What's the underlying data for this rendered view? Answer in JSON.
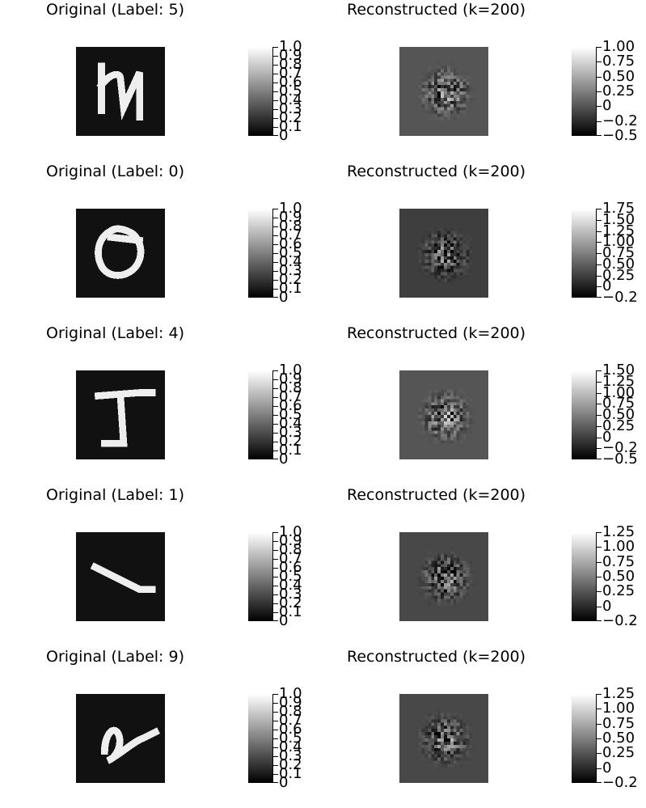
{
  "figure": {
    "rows": [
      {
        "original": {
          "title": "Original (Label: 5)",
          "digit": "5",
          "colorbar_ticks": [
            "1.0",
            "0.9",
            "0.8",
            "0.7",
            "0.6",
            "0.5",
            "0.4",
            "0.3",
            "0.2",
            "0.1",
            "0"
          ],
          "colorbar_range": [
            0,
            1
          ]
        },
        "reconstructed": {
          "title": "Reconstructed (k=200)",
          "colorbar_ticks": [
            "1.00",
            "0.75",
            "0.50",
            "0.25",
            "0",
            "−0.2",
            "−0.5"
          ],
          "colorbar_range": [
            -0.55,
            1.15
          ]
        }
      },
      {
        "original": {
          "title": "Original (Label: 0)",
          "digit": "0",
          "colorbar_ticks": [
            "1.0",
            "0.9",
            "0.8",
            "0.7",
            "0.6",
            "0.5",
            "0.4",
            "0.3",
            "0.2",
            "0.1",
            "0"
          ],
          "colorbar_range": [
            0,
            1
          ]
        },
        "reconstructed": {
          "title": "Reconstructed (k=200)",
          "colorbar_ticks": [
            "1.75",
            "1.50",
            "1.25",
            "1.00",
            "0.75",
            "0.50",
            "0.25",
            "0",
            "−0.2"
          ],
          "colorbar_range": [
            -0.3,
            1.8
          ]
        }
      },
      {
        "original": {
          "title": "Original (Label: 4)",
          "digit": "4",
          "colorbar_ticks": [
            "1.0",
            "0.9",
            "0.8",
            "0.7",
            "0.6",
            "0.5",
            "0.4",
            "0.3",
            "0.2",
            "0.1",
            "0"
          ],
          "colorbar_range": [
            0,
            1
          ]
        },
        "reconstructed": {
          "title": "Reconstructed (k=200)",
          "colorbar_ticks": [
            "1.50",
            "1.25",
            "1.00",
            "0.75",
            "0.50",
            "0.25",
            "0",
            "−0.2",
            "−0.5"
          ],
          "colorbar_range": [
            -0.6,
            1.55
          ]
        }
      },
      {
        "original": {
          "title": "Original (Label: 1)",
          "digit": "1",
          "colorbar_ticks": [
            "1.0",
            "0.9",
            "0.8",
            "0.7",
            "0.6",
            "0.5",
            "0.4",
            "0.3",
            "0.2",
            "0.1",
            "0"
          ],
          "colorbar_range": [
            0,
            1
          ]
        },
        "reconstructed": {
          "title": "Reconstructed (k=200)",
          "colorbar_ticks": [
            "1.25",
            "1.00",
            "0.75",
            "0.50",
            "0.25",
            "0",
            "−0.2"
          ],
          "colorbar_range": [
            -0.4,
            1.35
          ]
        }
      },
      {
        "original": {
          "title": "Original (Label: 9)",
          "digit": "9",
          "colorbar_ticks": [
            "1.0",
            "0.9",
            "0.8",
            "0.7",
            "0.6",
            "0.5",
            "0.4",
            "0.3",
            "0.2",
            "0.1",
            "0"
          ],
          "colorbar_range": [
            0,
            1
          ]
        },
        "reconstructed": {
          "title": "Reconstructed (k=200)",
          "colorbar_ticks": [
            "1.25",
            "1.00",
            "0.75",
            "0.50",
            "0.25",
            "0",
            "−0.2"
          ],
          "colorbar_range": [
            -0.4,
            1.35
          ]
        }
      }
    ],
    "colors": {
      "original_background": "#111111",
      "original_stroke": "#eeeeee",
      "reconstructed_background": "#555555"
    },
    "colormap": "grayscale"
  }
}
